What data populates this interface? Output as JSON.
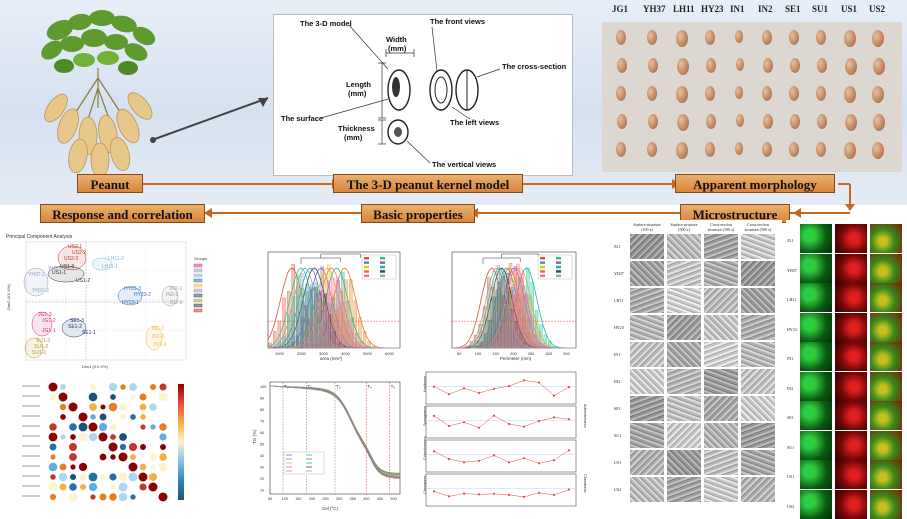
{
  "colors": {
    "flow": "#c8681e",
    "label_fill": "#d8843a",
    "band": "#dbe5f2"
  },
  "nodes": {
    "peanut": "Peanut",
    "model": "The 3-D peanut kernel model",
    "morphology": "Apparent morphology",
    "microstructure": "Microstructure",
    "basic": "Basic properties",
    "response": "Response and correlation"
  },
  "model_panel": {
    "title": "The 3-D model",
    "front": "The front views",
    "width": "Width",
    "width_unit": "(mm)",
    "length": "Length",
    "length_unit": "(mm)",
    "cross": "The cross-section",
    "surface": "The surface",
    "left": "The left views",
    "thickness": "Thickness",
    "thickness_unit": "(mm)",
    "vertical": "The vertical views"
  },
  "varieties": [
    "JG1",
    "YH37",
    "LH11",
    "HY23",
    "IN1",
    "IN2",
    "SE1",
    "SU1",
    "US1",
    "US2"
  ],
  "micro_columns": [
    "Surface structure (100 x)",
    "Surface structure (500 x)",
    "Cross-section structure (100 x)",
    "Cross-section structure (500 x)"
  ],
  "micro_rows": [
    "JG1",
    "YH37",
    "LH11",
    "HY23",
    "IN1",
    "IN2",
    "SE1",
    "SU1",
    "US1",
    "US2"
  ],
  "pca": {
    "title": "Principal Component Analysis",
    "xlabel": "Dim1 (XX.X%)",
    "ylabel": "Dim2 (XX.X%)",
    "legend_title": "Groups",
    "points": [
      {
        "label": "US2-1",
        "color": "#c0392b"
      },
      {
        "label": "US2-2",
        "color": "#c0392b"
      },
      {
        "label": "US2-3",
        "color": "#c0392b"
      },
      {
        "label": "US1-3",
        "color": "#333333"
      },
      {
        "label": "US1-1",
        "color": "#333333"
      },
      {
        "label": "US1-2",
        "color": "#333333"
      },
      {
        "label": "LH11-2",
        "color": "#7fb3e0"
      },
      {
        "label": "LH11-1",
        "color": "#7fb3e0"
      },
      {
        "label": "YH37-3",
        "color": "#8aa0c0"
      },
      {
        "label": "YH37-1",
        "color": "#8aa0c0"
      },
      {
        "label": "YH37-2",
        "color": "#8aa0c0"
      },
      {
        "label": "HY23-3",
        "color": "#2f6fb3"
      },
      {
        "label": "HY23-2",
        "color": "#2f6fb3"
      },
      {
        "label": "HY23-1",
        "color": "#2f6fb3"
      },
      {
        "label": "IN2-1",
        "color": "#999999"
      },
      {
        "label": "IN2-2",
        "color": "#999999"
      },
      {
        "label": "IN2-3",
        "color": "#999999"
      },
      {
        "label": "JG1-3",
        "color": "#d62d7c"
      },
      {
        "label": "JG1-2",
        "color": "#d62d7c"
      },
      {
        "label": "JG1-1",
        "color": "#d62d7c"
      },
      {
        "label": "SE1-3",
        "color": "#1f3a7a"
      },
      {
        "label": "SE1-2",
        "color": "#1f3a7a"
      },
      {
        "label": "SE1-1",
        "color": "#1f3a7a"
      },
      {
        "label": "SU1-3",
        "color": "#b8962e"
      },
      {
        "label": "SU1-2",
        "color": "#b8962e"
      },
      {
        "label": "SU1-1",
        "color": "#b8962e"
      },
      {
        "label": "IN1-1",
        "color": "#f0b84a"
      },
      {
        "label": "IN1-2",
        "color": "#f0b84a"
      },
      {
        "label": "IN1-3",
        "color": "#f0b84a"
      }
    ]
  },
  "area_chart": {
    "xlabel": "area (mm²)",
    "ticks": [
      "1000",
      "2000",
      "3000",
      "4000",
      "5000",
      "6000"
    ]
  },
  "perimeter_chart": {
    "xlabel": "Perimeter (mm)",
    "ticks": [
      "50",
      "100",
      "150",
      "200",
      "250",
      "300",
      "350"
    ]
  },
  "tg_chart": {
    "ylabel": "TG (%)",
    "xlabel": "Cel (°C)",
    "markers": [
      "T₁",
      "T₂",
      "T₃",
      "T₄",
      "T₅"
    ],
    "yticks": [
      "100",
      "90",
      "80",
      "70",
      "60",
      "50",
      "40",
      "30",
      "20",
      "10"
    ],
    "xticks": [
      "50",
      "100",
      "150",
      "200",
      "250",
      "300",
      "350",
      "400",
      "450",
      "500"
    ]
  },
  "tpa_chart": {
    "panels": [
      "Hardness",
      "Springiness",
      "Cohesiveness",
      "Chewiness"
    ],
    "right_labels": [
      "Adhesiveness",
      "Chewiness"
    ]
  }
}
